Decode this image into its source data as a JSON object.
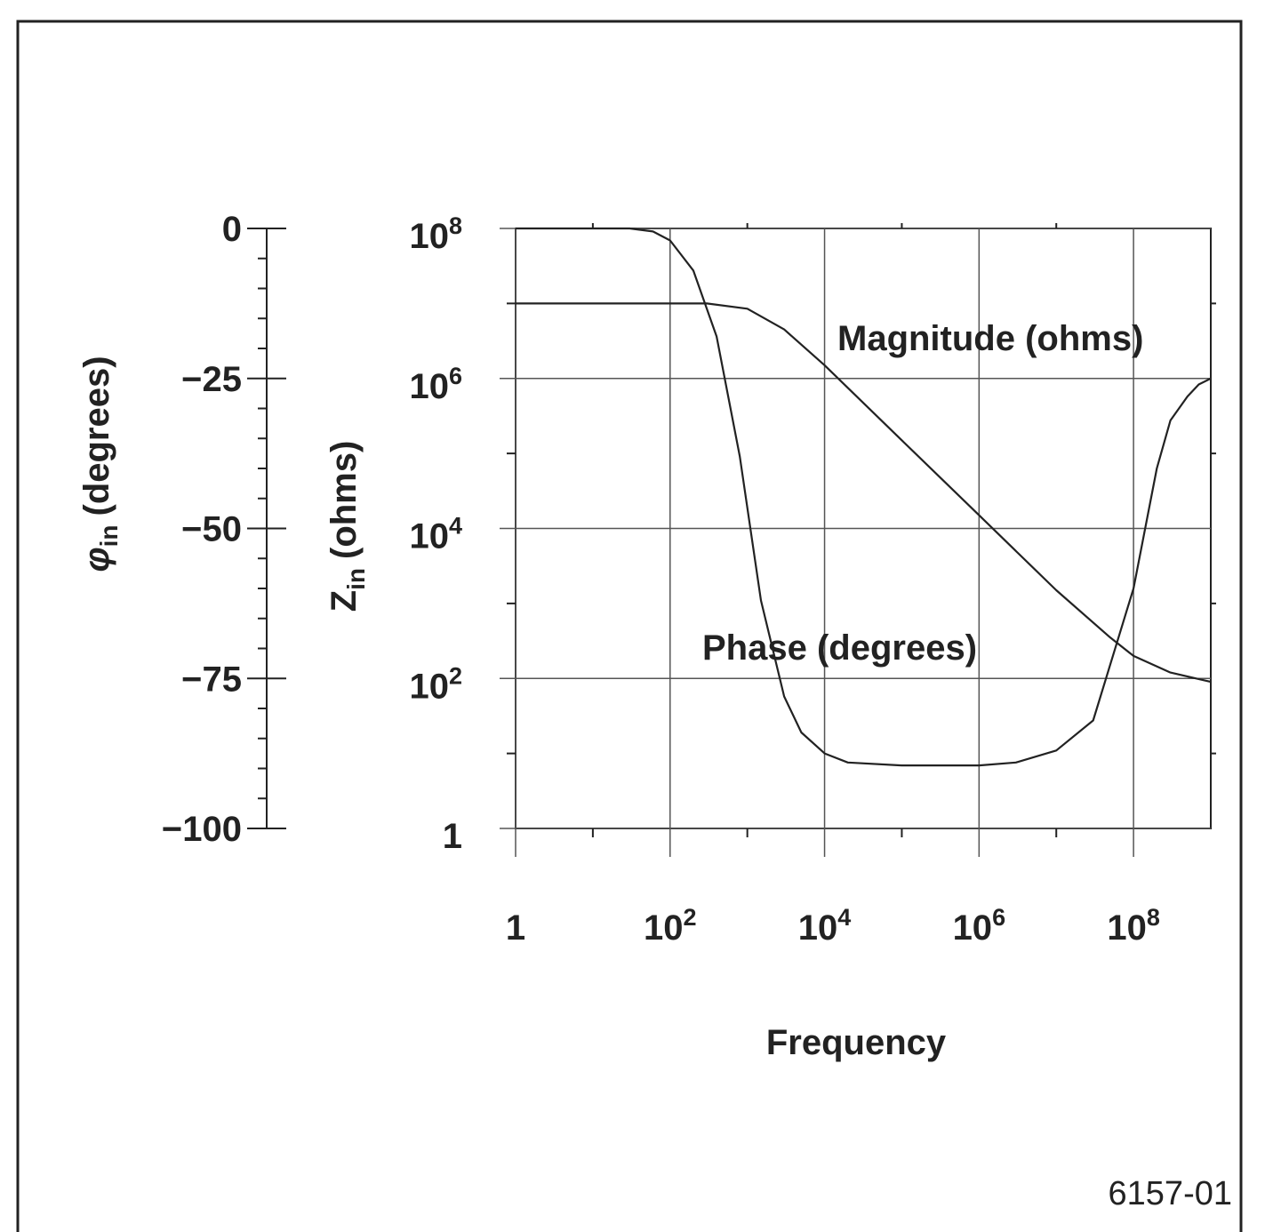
{
  "colors": {
    "ink": "#222222",
    "grid": "#555555",
    "background": "#ffffff"
  },
  "figure_id": "6157-01",
  "chart_data": {
    "type": "line",
    "title": "",
    "xlabel": "Frequency",
    "ylabel_left": "Z",
    "ylabel_left_sub": "in",
    "ylabel_left_unit": "(ohms)",
    "ylabel_phase": "φ",
    "ylabel_phase_sub": "in",
    "ylabel_phase_unit": "(degrees)",
    "x_scale": "log",
    "y_scale": "log",
    "xlim": [
      1,
      1000000000
    ],
    "ylim": [
      1,
      100000000
    ],
    "phase_lim": [
      -100,
      0
    ],
    "grid": true,
    "x_ticks": [
      {
        "base": "1",
        "exp": "",
        "value": 1
      },
      {
        "base": "10",
        "exp": "2",
        "value": 100
      },
      {
        "base": "10",
        "exp": "4",
        "value": 10000
      },
      {
        "base": "10",
        "exp": "6",
        "value": 1000000
      },
      {
        "base": "10",
        "exp": "8",
        "value": 100000000
      }
    ],
    "y_ticks": [
      {
        "base": "1",
        "exp": "",
        "value": 1
      },
      {
        "base": "10",
        "exp": "2",
        "value": 100
      },
      {
        "base": "10",
        "exp": "4",
        "value": 10000
      },
      {
        "base": "10",
        "exp": "6",
        "value": 1000000
      },
      {
        "base": "10",
        "exp": "8",
        "value": 100000000
      }
    ],
    "phase_ticks": [
      {
        "label": "0",
        "value": 0
      },
      {
        "label": "−25",
        "value": -25
      },
      {
        "label": "−50",
        "value": -50
      },
      {
        "label": "−75",
        "value": -75
      },
      {
        "label": "−100",
        "value": -100
      }
    ],
    "series": [
      {
        "name": "Magnitude (ohms)",
        "axis": "left",
        "x": [
          1,
          30,
          300,
          1000,
          3000,
          10000,
          100000,
          1000000,
          10000000,
          50000000,
          100000000,
          300000000,
          1000000000
        ],
        "y": [
          10000000,
          10000000,
          10000000,
          8500000,
          4500000,
          1500000,
          150000,
          15000,
          1500,
          350,
          200,
          120,
          90
        ]
      },
      {
        "name": "Phase (degrees)",
        "axis": "phase",
        "x": [
          1,
          10,
          30,
          60,
          100,
          200,
          400,
          800,
          1500,
          3000,
          5000,
          10000,
          20000,
          100000,
          1000000,
          3000000,
          10000000,
          30000000,
          100000000,
          200000000,
          300000000,
          500000000,
          700000000,
          1000000000
        ],
        "y": [
          0,
          0,
          0,
          -0.5,
          -2,
          -7,
          -18,
          -38,
          -62,
          -78,
          -84,
          -87.5,
          -89,
          -89.5,
          -89.5,
          -89,
          -87,
          -82,
          -60,
          -40,
          -32,
          -28,
          -26,
          -25
        ]
      }
    ]
  }
}
